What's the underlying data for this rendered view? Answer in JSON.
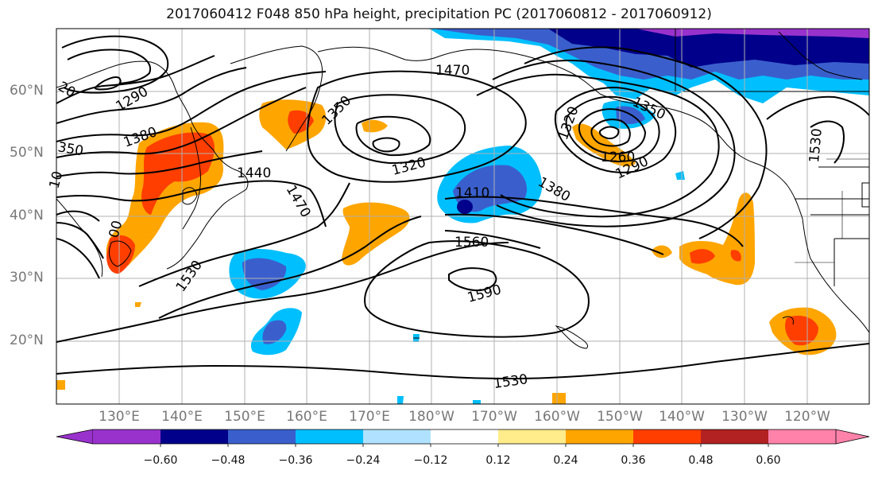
{
  "title": "2017060412 F048 850 hPa height, precipitation PC (2017060812 - 2017060912)",
  "lat_labels": [
    "60°N",
    "50°N",
    "40°N",
    "30°N",
    "20°N"
  ],
  "lon_labels": [
    "130°E",
    "140°E",
    "150°E",
    "160°E",
    "170°E",
    "180°W",
    "170°W",
    "160°W",
    "150°W",
    "140°W",
    "130°W",
    "120°W"
  ],
  "contour_labels": [
    "1470",
    "1290",
    "1350",
    "1320",
    "1380",
    "1440",
    "1470",
    "1320",
    "1410",
    "1380",
    "1260",
    "1290",
    "1350",
    "1560",
    "1590",
    "1530",
    "1530",
    "1530",
    "20",
    "350",
    "10",
    "00"
  ],
  "colorbar": {
    "ticks": [
      "−0.60",
      "−0.48",
      "−0.36",
      "−0.24",
      "−0.12",
      "0.12",
      "0.24",
      "0.36",
      "0.48",
      "0.60"
    ],
    "colors": [
      "#9932cc",
      "#00008b",
      "#3a5fcd",
      "#00bfff",
      "#b0e2ff",
      "#ffffff",
      "#ffec8b",
      "#ffa500",
      "#ff3e00",
      "#b22222",
      "#ff82ab"
    ]
  }
}
